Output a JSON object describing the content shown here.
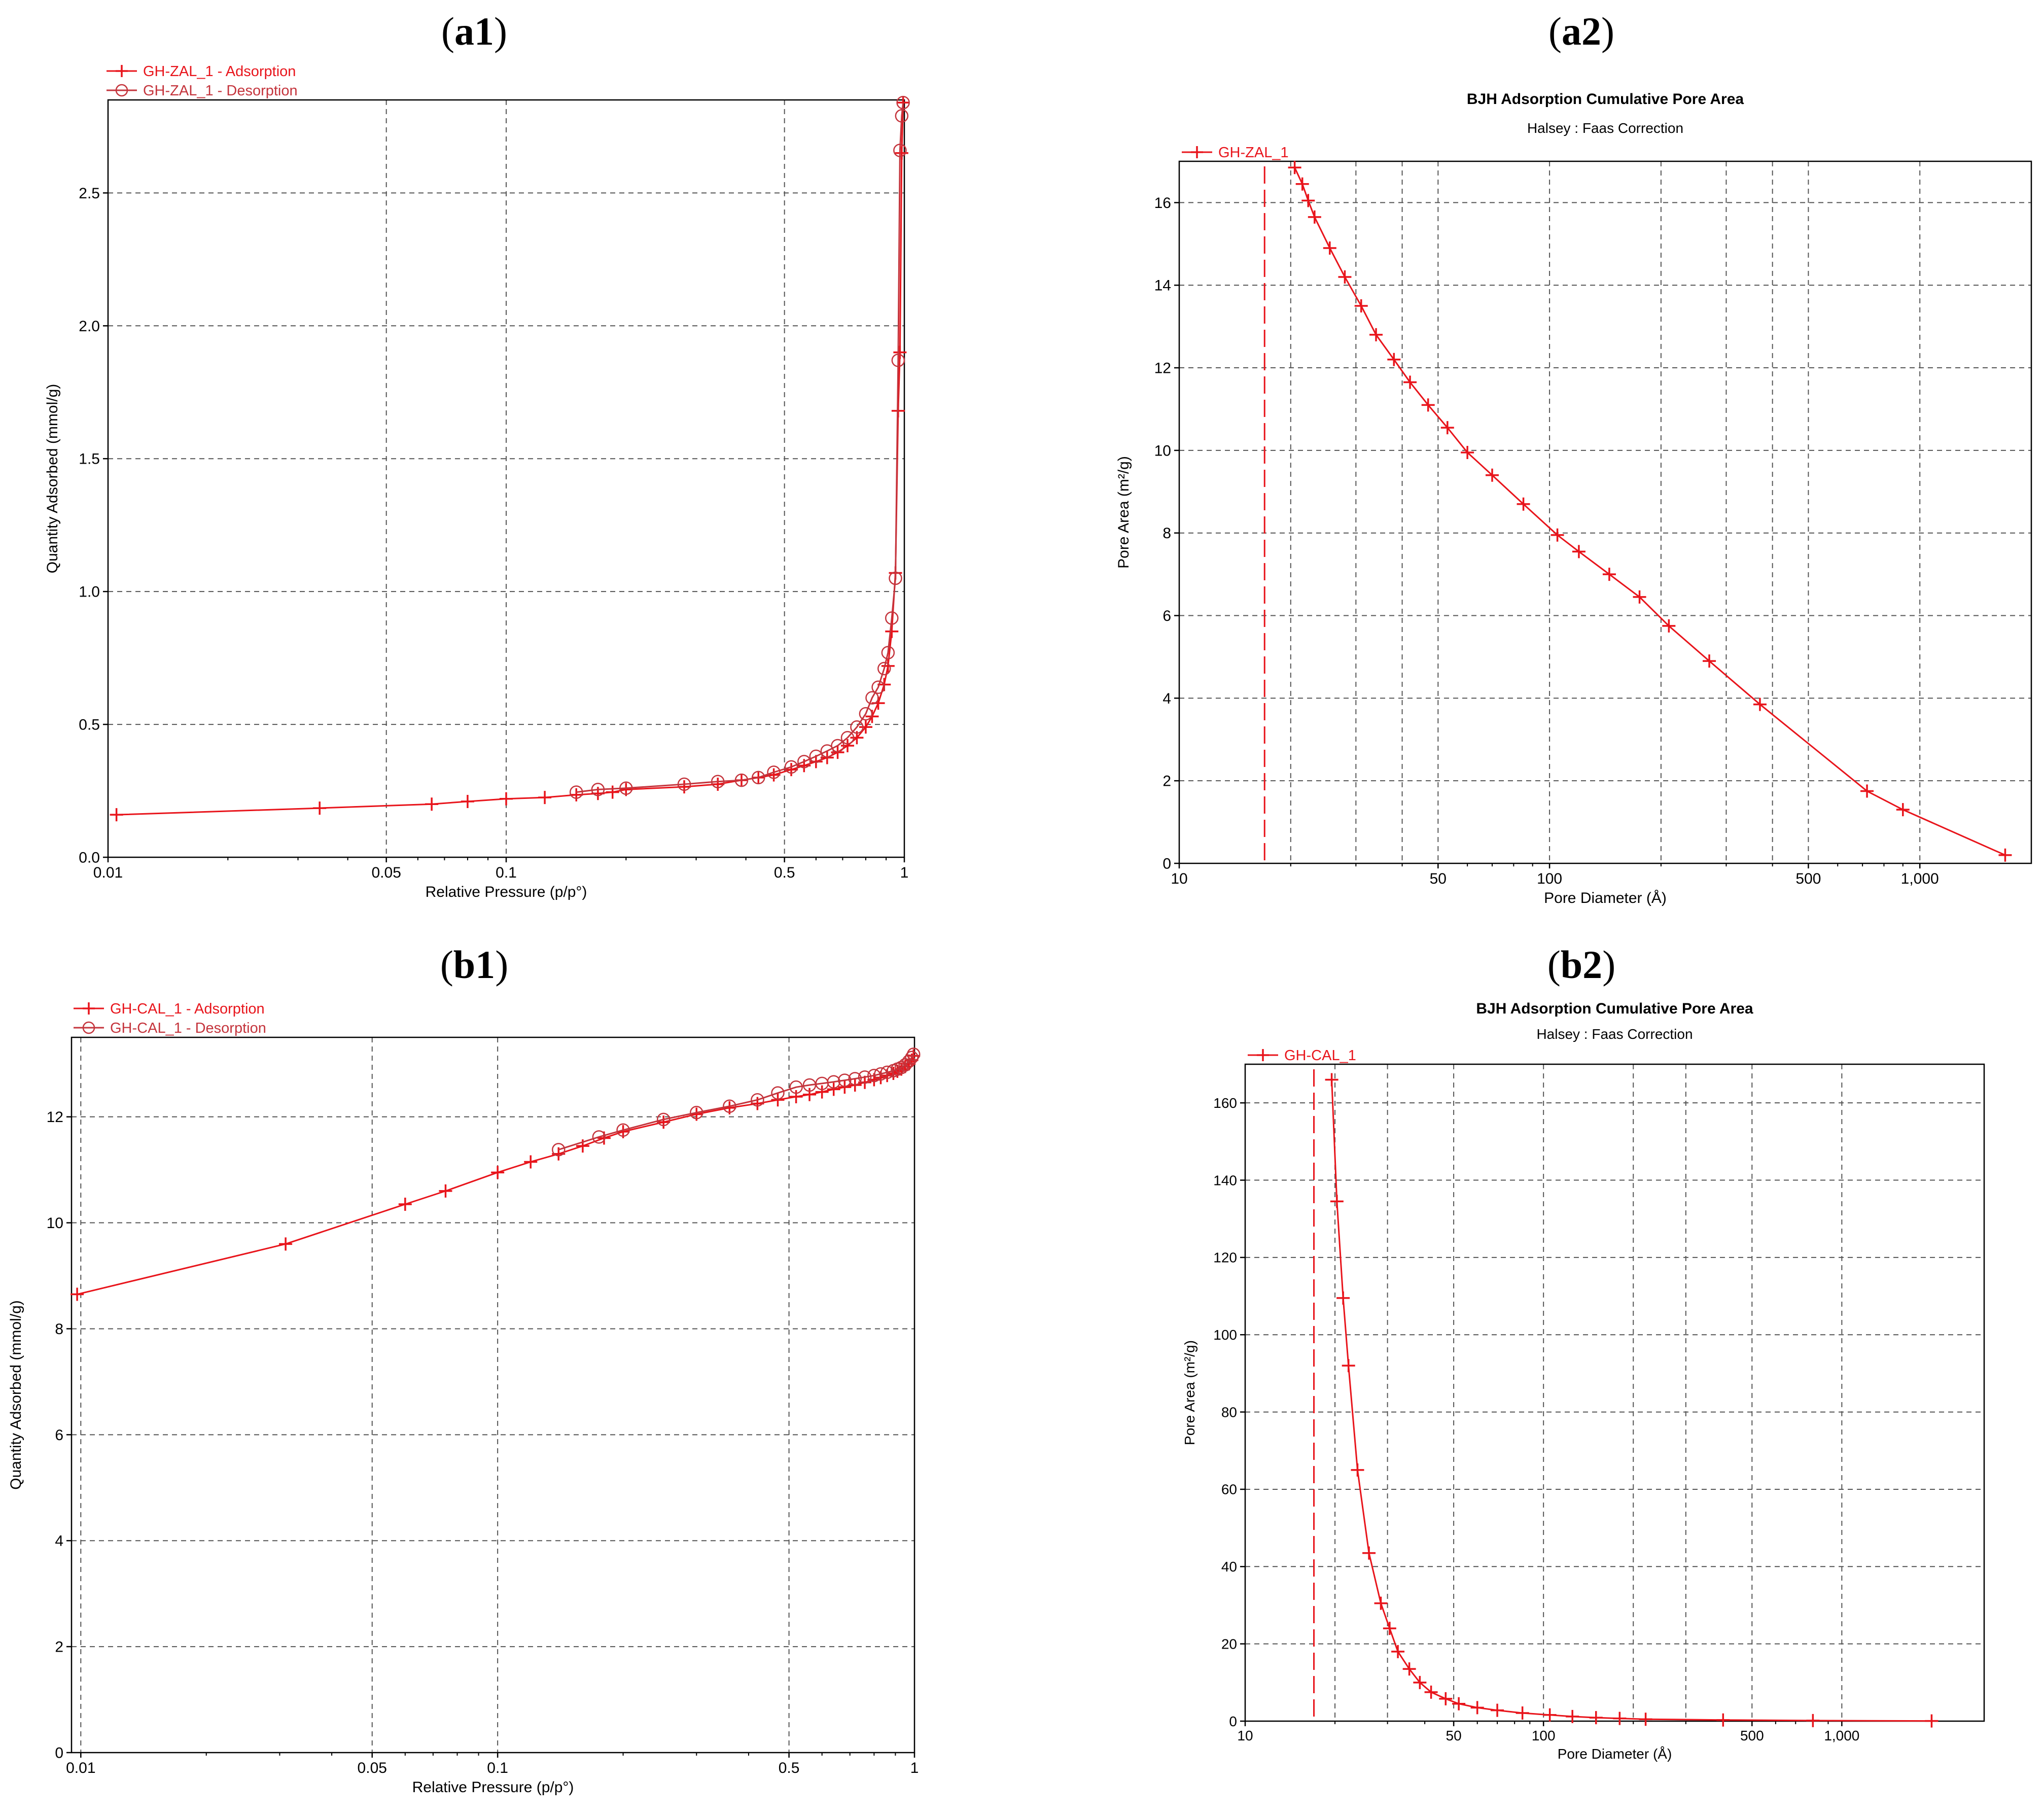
{
  "figure": {
    "panel_labels": {
      "a1": [
        "(",
        "a1",
        ")"
      ],
      "a2": [
        "(",
        "a2",
        ")"
      ],
      "b1": [
        "(",
        "b1",
        ")"
      ],
      "b2": [
        "(",
        "b2",
        ")"
      ]
    }
  },
  "colors": {
    "series": "#e8141b",
    "desorption": "#c4343c",
    "grid": "#555555",
    "axis": "#000000"
  },
  "chart_data": [
    {
      "id": "a1",
      "type": "line",
      "title": "",
      "xlabel": "Relative Pressure (p/p°)",
      "ylabel": "Quantity Adsorbed (mmol/g)",
      "x_scale": "log",
      "xlim": [
        0.01,
        1.0
      ],
      "ylim": [
        0,
        2.85
      ],
      "x_ticks": [
        0.01,
        0.05,
        0.1,
        0.5,
        1
      ],
      "x_tick_labels": [
        "0.01",
        "0.05",
        "0.1",
        "0.5",
        "1"
      ],
      "y_ticks": [
        0,
        0.5,
        1.0,
        1.5,
        2.0,
        2.5
      ],
      "y_tick_labels": [
        "0.0",
        "0.5",
        "1.0",
        "1.5",
        "2.0",
        "2.5"
      ],
      "grid": true,
      "legend_position": "top-left-outside",
      "series": [
        {
          "name": "GH-ZAL_1 - Adsorption",
          "marker": "plus",
          "x": [
            0.0105,
            0.034,
            0.065,
            0.08,
            0.1,
            0.125,
            0.15,
            0.17,
            0.185,
            0.2,
            0.28,
            0.34,
            0.39,
            0.43,
            0.47,
            0.52,
            0.56,
            0.6,
            0.64,
            0.68,
            0.72,
            0.76,
            0.8,
            0.83,
            0.86,
            0.89,
            0.91,
            0.93,
            0.95,
            0.965,
            0.975,
            0.985,
            0.993
          ],
          "y": [
            0.16,
            0.185,
            0.2,
            0.21,
            0.22,
            0.225,
            0.235,
            0.24,
            0.245,
            0.255,
            0.265,
            0.275,
            0.29,
            0.3,
            0.31,
            0.33,
            0.345,
            0.36,
            0.375,
            0.395,
            0.42,
            0.45,
            0.49,
            0.53,
            0.58,
            0.65,
            0.72,
            0.85,
            1.07,
            1.68,
            1.9,
            2.65,
            2.84
          ]
        },
        {
          "name": "GH-ZAL_1 - Desorption",
          "marker": "circle",
          "x": [
            0.993,
            0.985,
            0.975,
            0.965,
            0.95,
            0.93,
            0.91,
            0.89,
            0.86,
            0.83,
            0.8,
            0.76,
            0.72,
            0.68,
            0.64,
            0.6,
            0.56,
            0.52,
            0.47,
            0.43,
            0.39,
            0.34,
            0.28,
            0.2,
            0.17,
            0.15
          ],
          "y": [
            2.84,
            2.79,
            2.66,
            1.87,
            1.05,
            0.9,
            0.77,
            0.71,
            0.64,
            0.6,
            0.54,
            0.49,
            0.45,
            0.42,
            0.4,
            0.38,
            0.36,
            0.34,
            0.32,
            0.3,
            0.29,
            0.285,
            0.275,
            0.26,
            0.255,
            0.245
          ]
        }
      ]
    },
    {
      "id": "a2",
      "type": "line",
      "title": "BJH Adsorption Cumulative Pore Area",
      "subtitle": "Halsey : Faas Correction",
      "xlabel": "Pore Diameter (Å)",
      "ylabel": "Pore Area (m²/g)",
      "x_scale": "log",
      "xlim": [
        10,
        2000
      ],
      "ylim": [
        0,
        17
      ],
      "x_ticks": [
        10,
        50,
        100,
        500,
        1000
      ],
      "x_tick_labels": [
        "10",
        "50",
        "100",
        "500",
        "1,000"
      ],
      "x_minor_grid": [
        20,
        30,
        40,
        200,
        300,
        400
      ],
      "y_ticks": [
        0,
        2,
        4,
        6,
        8,
        10,
        12,
        14,
        16
      ],
      "y_tick_labels": [
        "0",
        "2",
        "4",
        "6",
        "8",
        "10",
        "12",
        "14",
        "16"
      ],
      "grid": true,
      "vline_x": 17,
      "legend_position": "top-left",
      "series": [
        {
          "name": "GH-ZAL_1",
          "marker": "plus",
          "x": [
            20.5,
            21.5,
            22.3,
            23.2,
            25.5,
            28.0,
            31.0,
            34.0,
            38.0,
            42.0,
            47.0,
            53.0,
            60.0,
            70.0,
            85.0,
            105.0,
            120.0,
            145.0,
            175.0,
            210.0,
            270.0,
            370.0,
            720.0,
            900.0,
            1700.0
          ],
          "y": [
            16.85,
            16.45,
            16.05,
            15.65,
            14.9,
            14.2,
            13.5,
            12.8,
            12.2,
            11.65,
            11.1,
            10.55,
            9.95,
            9.4,
            8.7,
            7.95,
            7.55,
            7.0,
            6.45,
            5.75,
            4.9,
            3.85,
            1.75,
            1.3,
            0.2
          ]
        }
      ]
    },
    {
      "id": "b1",
      "type": "line",
      "title": "",
      "xlabel": "Relative Pressure (p/p°)",
      "ylabel": "Quantity Adsorbed (mmol/g)",
      "x_scale": "log",
      "xlim": [
        0.0095,
        1.0
      ],
      "ylim": [
        0,
        13.5
      ],
      "x_ticks": [
        0.01,
        0.05,
        0.1,
        0.5,
        1
      ],
      "x_tick_labels": [
        "0.01",
        "0.05",
        "0.1",
        "0.5",
        "1"
      ],
      "y_ticks": [
        0,
        2,
        4,
        6,
        8,
        10,
        12
      ],
      "y_tick_labels": [
        "0",
        "2",
        "4",
        "6",
        "8",
        "10",
        "12"
      ],
      "grid": true,
      "legend_position": "top-left-outside",
      "series": [
        {
          "name": "GH-CAL_1 - Adsorption",
          "marker": "plus",
          "x": [
            0.0098,
            0.031,
            0.06,
            0.075,
            0.1,
            0.12,
            0.14,
            0.16,
            0.18,
            0.2,
            0.25,
            0.3,
            0.36,
            0.42,
            0.47,
            0.52,
            0.56,
            0.6,
            0.64,
            0.68,
            0.72,
            0.76,
            0.8,
            0.83,
            0.86,
            0.89,
            0.91,
            0.93,
            0.95,
            0.97,
            0.985,
            0.995
          ],
          "y": [
            8.65,
            9.6,
            10.35,
            10.6,
            10.95,
            11.15,
            11.3,
            11.45,
            11.6,
            11.72,
            11.9,
            12.05,
            12.17,
            12.25,
            12.32,
            12.38,
            12.42,
            12.47,
            12.52,
            12.56,
            12.6,
            12.65,
            12.7,
            12.74,
            12.78,
            12.82,
            12.86,
            12.9,
            12.95,
            13.0,
            13.07,
            13.15
          ]
        },
        {
          "name": "GH-CAL_1 - Desorption",
          "marker": "circle",
          "x": [
            0.995,
            0.985,
            0.97,
            0.95,
            0.93,
            0.91,
            0.89,
            0.86,
            0.83,
            0.8,
            0.76,
            0.72,
            0.68,
            0.64,
            0.6,
            0.56,
            0.52,
            0.47,
            0.42,
            0.36,
            0.3,
            0.25,
            0.2,
            0.175,
            0.14
          ],
          "y": [
            13.18,
            13.12,
            13.05,
            12.98,
            12.93,
            12.9,
            12.87,
            12.84,
            12.81,
            12.78,
            12.75,
            12.72,
            12.69,
            12.66,
            12.63,
            12.6,
            12.56,
            12.45,
            12.32,
            12.2,
            12.08,
            11.95,
            11.75,
            11.62,
            11.38
          ]
        }
      ]
    },
    {
      "id": "b2",
      "type": "line",
      "title": "BJH Adsorption Cumulative Pore Area",
      "subtitle": "Halsey : Faas Correction",
      "xlabel": "Pore Diameter (Å)",
      "ylabel": "Pore Area (m²/g)",
      "x_scale": "log",
      "xlim": [
        10,
        3000
      ],
      "ylim": [
        0,
        170
      ],
      "x_ticks": [
        10,
        50,
        100,
        500,
        1000
      ],
      "x_tick_labels": [
        "10",
        "50",
        "100",
        "500",
        "1,000"
      ],
      "x_minor_grid": [
        20,
        30,
        200,
        300
      ],
      "y_ticks": [
        0,
        20,
        40,
        60,
        80,
        100,
        120,
        140,
        160
      ],
      "y_tick_labels": [
        "0",
        "20",
        "40",
        "60",
        "80",
        "100",
        "120",
        "140",
        "160"
      ],
      "grid": true,
      "vline_x": 17,
      "legend_position": "top-left",
      "series": [
        {
          "name": "GH-CAL_1",
          "marker": "plus",
          "x": [
            19.5,
            20.3,
            21.3,
            22.2,
            23.8,
            26.0,
            28.5,
            30.5,
            32.5,
            35.5,
            38.5,
            42.0,
            47.0,
            52.0,
            60.0,
            70.0,
            85.0,
            105.0,
            125.0,
            150.0,
            180.0,
            220.0,
            400.0,
            800.0,
            2000.0
          ],
          "y": [
            166.0,
            134.5,
            109.5,
            92.0,
            65.0,
            43.5,
            30.5,
            24.0,
            18.0,
            13.5,
            10.0,
            7.5,
            5.8,
            4.5,
            3.5,
            2.8,
            2.1,
            1.6,
            1.2,
            0.9,
            0.7,
            0.5,
            0.3,
            0.15,
            0.05
          ]
        }
      ]
    }
  ]
}
